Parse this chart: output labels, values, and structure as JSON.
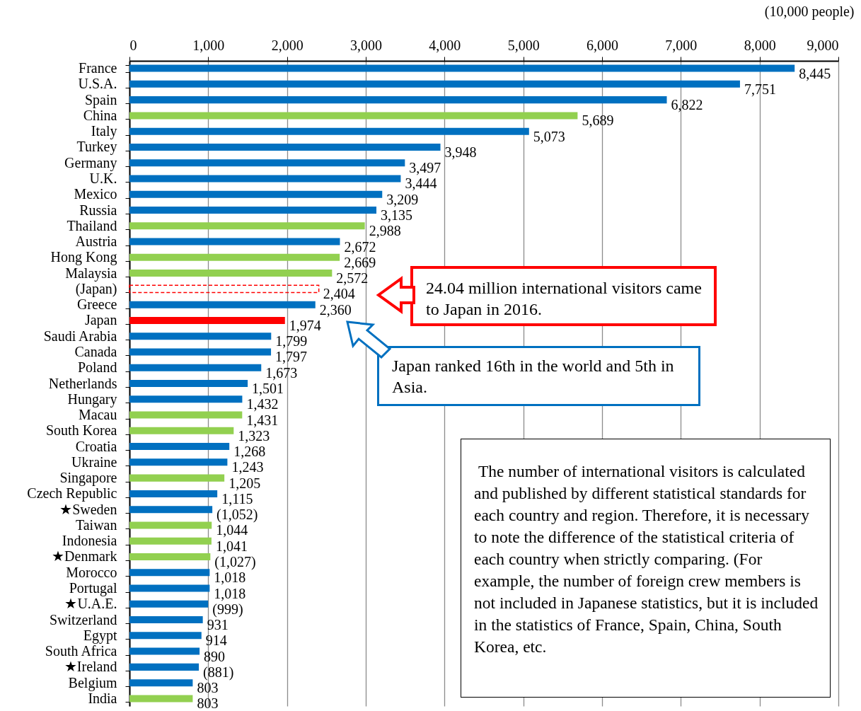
{
  "chart_data": {
    "type": "bar",
    "orientation": "horizontal",
    "xlabel": "(10,000 people)",
    "categories": [
      "France",
      "U.S.A.",
      "Spain",
      "China",
      "Italy",
      "Turkey",
      "Germany",
      "U.K.",
      "Mexico",
      "Russia",
      "Thailand",
      "Austria",
      "Hong Kong",
      "Malaysia",
      "(Japan)",
      "Greece",
      "Japan",
      "Saudi Arabia",
      "Canada",
      "Poland",
      "Netherlands",
      "Hungary",
      "Macau",
      "South Korea",
      "Croatia",
      "Ukraine",
      "Singapore",
      "Czech Republic",
      "★Sweden",
      "Taiwan",
      "Indonesia",
      "★Denmark",
      "Morocco",
      "Portugal",
      "★U.A.E.",
      "Switzerland",
      "Egypt",
      "South Africa",
      "★Ireland",
      "Belgium",
      "India"
    ],
    "series": [
      {
        "values": [
          8445,
          7751,
          6822,
          5689,
          5073,
          3948,
          3497,
          3444,
          3209,
          3135,
          2988,
          2672,
          2669,
          2572,
          null,
          2360,
          1974,
          1799,
          1797,
          1673,
          1501,
          1432,
          1431,
          1323,
          1268,
          1243,
          1205,
          1115,
          1052,
          1044,
          1041,
          1027,
          1018,
          1018,
          999,
          931,
          914,
          890,
          881,
          803,
          803
        ],
        "colors": [
          "#0070c0",
          "#0070c0",
          "#0070c0",
          "#92d050",
          "#0070c0",
          "#0070c0",
          "#0070c0",
          "#0070c0",
          "#0070c0",
          "#0070c0",
          "#92d050",
          "#0070c0",
          "#92d050",
          "#92d050",
          null,
          "#0070c0",
          "#ff0000",
          "#0070c0",
          "#0070c0",
          "#0070c0",
          "#0070c0",
          "#0070c0",
          "#92d050",
          "#92d050",
          "#0070c0",
          "#0070c0",
          "#92d050",
          "#0070c0",
          "#0070c0",
          "#92d050",
          "#92d050",
          "#92d050",
          "#0070c0",
          "#0070c0",
          "#0070c0",
          "#0070c0",
          "#0070c0",
          "#0070c0",
          "#0070c0",
          "#0070c0",
          "#92d050"
        ],
        "value_labels": [
          "8,445",
          "7,751",
          "6,822",
          "5,689",
          "5,073",
          "3,948",
          "3,497",
          "3,444",
          "3,209",
          "3,135",
          "2,988",
          "2,672",
          "2,669",
          "2,572",
          null,
          "2,360",
          "1,974",
          "1,799",
          "1,797",
          "1,673",
          "1,501",
          "1,432",
          "1,431",
          "1,323",
          "1,268",
          "1,243",
          "1,205",
          "1,115",
          "(1,052)",
          "1,044",
          "1,041",
          "(1,027)",
          "1,018",
          "1,018",
          "(999)",
          "931",
          "914",
          "890",
          "(881)",
          "803",
          "803"
        ]
      },
      {
        "values": [
          null,
          null,
          null,
          null,
          null,
          null,
          null,
          null,
          null,
          null,
          null,
          null,
          null,
          null,
          2404,
          null,
          null,
          null,
          null,
          null,
          null,
          null,
          null,
          null,
          null,
          null,
          null,
          null,
          null,
          null,
          null,
          null,
          null,
          null,
          null,
          null,
          null,
          null,
          null,
          null,
          null
        ],
        "color": "#ff0000",
        "line_style": "dashed",
        "value_labels": [
          null,
          null,
          null,
          null,
          null,
          null,
          null,
          null,
          null,
          null,
          null,
          null,
          null,
          null,
          "2,404",
          null,
          null,
          null,
          null,
          null,
          null,
          null,
          null,
          null,
          null,
          null,
          null,
          null,
          null,
          null,
          null,
          null,
          null,
          null,
          null,
          null,
          null,
          null,
          null,
          null,
          null
        ]
      }
    ],
    "xlim": [
      0,
      9000
    ],
    "xticks": [
      {
        "value": 0,
        "label": "0"
      },
      {
        "value": 1000,
        "label": "1,000"
      },
      {
        "value": 2000,
        "label": "2,000"
      },
      {
        "value": 3000,
        "label": "3,000"
      },
      {
        "value": 4000,
        "label": "4,000"
      },
      {
        "value": 5000,
        "label": "5,000"
      },
      {
        "value": 6000,
        "label": "6,000"
      },
      {
        "value": 7000,
        "label": "7,000"
      },
      {
        "value": 8000,
        "label": "8,000"
      },
      {
        "value": 9000,
        "label": "9,000"
      }
    ],
    "grid": "x",
    "annotations": [
      "24.04 million international visitors came to Japan in 2016.",
      "Japan ranked 16th in the world and 5th in Asia.",
      "The number of international visitors is calculated and published by different statistical standards for each country and region. Therefore, it is necessary to note the difference of the statistical criteria of each country when strictly comparing. (For example, the number of foreign crew members is not included in Japanese statistics, but it is included in the statistics of France, Spain, China, South Korea, etc."
    ]
  }
}
